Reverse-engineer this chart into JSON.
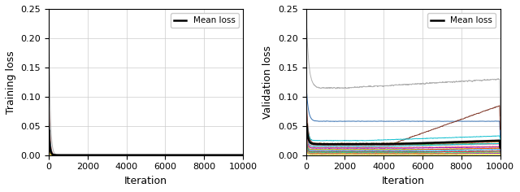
{
  "xlabel": "Iteration",
  "ylabel_left": "Training loss",
  "ylabel_right": "Validation loss",
  "xlim": [
    0,
    10000
  ],
  "ylim": [
    0,
    0.25
  ],
  "yticks": [
    0.0,
    0.05,
    0.1,
    0.15,
    0.2,
    0.25
  ],
  "xticks": [
    0,
    2000,
    4000,
    6000,
    8000,
    10000
  ],
  "legend_label": "Mean loss",
  "n_iterations": 10000,
  "seed": 42,
  "bg_color": "#ffffff"
}
